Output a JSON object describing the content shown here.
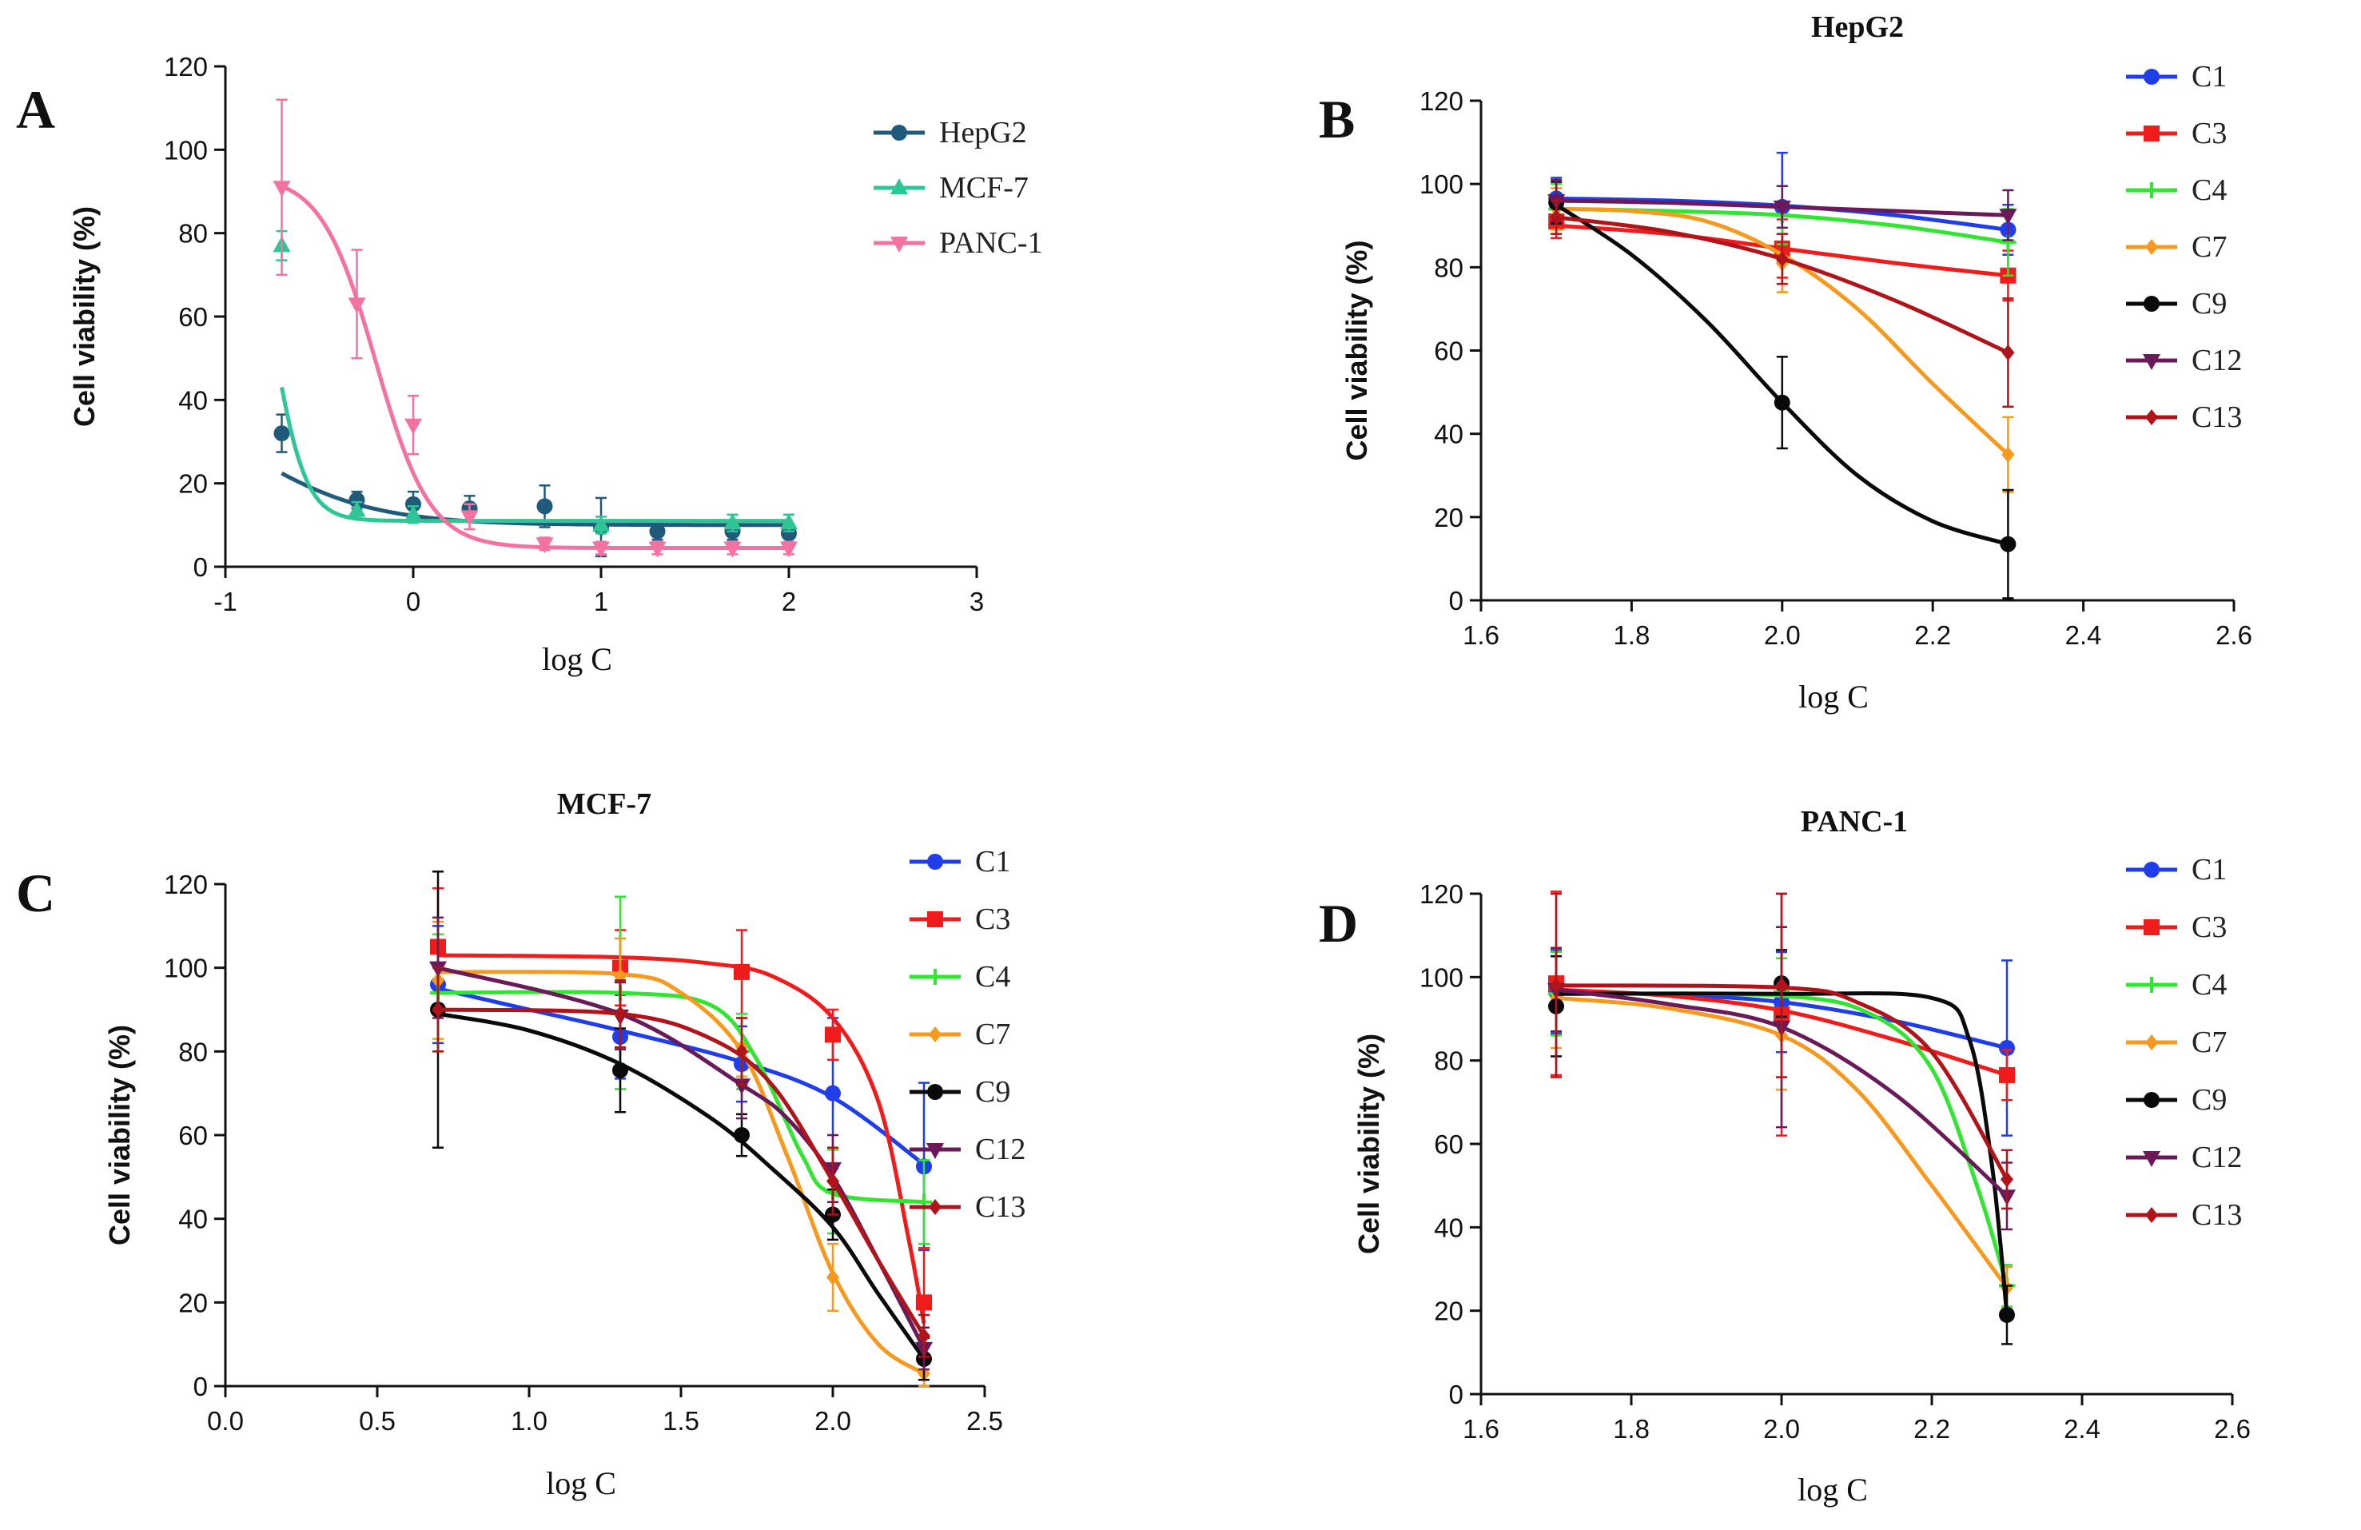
{
  "chart_data": [
    {
      "panel": "A",
      "type": "scatter",
      "title": "",
      "xlabel": "log C",
      "ylabel": "Cell viability (%)",
      "xlim": [
        -1,
        3
      ],
      "ylim": [
        0,
        120
      ],
      "xticks": [
        "-1",
        "0",
        "1",
        "2",
        "3"
      ],
      "yticks": [
        "0",
        "20",
        "40",
        "60",
        "80",
        "100",
        "120"
      ],
      "series": [
        {
          "name": "HepG2",
          "color": "#1f5a7a",
          "marker": "circle",
          "x": [
            -0.7,
            -0.3,
            0,
            0.3,
            0.7,
            1,
            1.3,
            1.7,
            2
          ],
          "y": [
            32,
            16,
            15,
            14,
            14.5,
            9.5,
            8.5,
            8.5,
            8
          ],
          "err": [
            4.5,
            2,
            3,
            3,
            5,
            7,
            2,
            2,
            2
          ],
          "fit": {
            "bottom": 10,
            "top": 45,
            "logec50": -0.9,
            "hill": -1.3
          }
        },
        {
          "name": "MCF-7",
          "color": "#2ec694",
          "marker": "triangle-up",
          "x": [
            -0.7,
            -0.3,
            0,
            1,
            1.7,
            2
          ],
          "y": [
            77,
            13.5,
            12.5,
            10,
            10.5,
            10.5
          ],
          "err": [
            3.5,
            2,
            2,
            2,
            2,
            2
          ],
          "fit": {
            "bottom": 11,
            "top": 100,
            "logec50": -0.75,
            "hill": -5
          }
        },
        {
          "name": "PANC-1",
          "color": "#f472a2",
          "marker": "triangle-down",
          "x": [
            -0.7,
            -0.3,
            0,
            0.3,
            0.7,
            1,
            1.3,
            1.7,
            2
          ],
          "y": [
            91,
            63,
            34,
            12,
            5.5,
            4.5,
            4.5,
            4.5,
            4.5
          ],
          "err": [
            21,
            13,
            7,
            3,
            1.5,
            1.5,
            1.5,
            1.5,
            1.5
          ],
          "fit": {
            "bottom": 4.5,
            "top": 94,
            "logec50": -0.2,
            "hill": -3
          }
        }
      ]
    },
    {
      "panel": "B",
      "type": "line",
      "title": "HepG2",
      "xlabel": "log C",
      "ylabel": "Cell viability (%)",
      "xlim": [
        1.6,
        2.6
      ],
      "ylim": [
        0,
        120
      ],
      "xticks": [
        "1.6",
        "1.8",
        "2.0",
        "2.2",
        "2.4",
        "2.6"
      ],
      "yticks": [
        "0",
        "20",
        "40",
        "60",
        "80",
        "100",
        "120"
      ],
      "x": [
        1.7,
        2.0,
        2.3
      ],
      "series": [
        {
          "name": "C1",
          "color": "#1f3de8",
          "marker": "circle",
          "y": [
            96.5,
            94.5,
            89
          ],
          "err": [
            5,
            13,
            6
          ],
          "curve": [
            [
              1.7,
              96.5
            ],
            [
              1.85,
              96
            ],
            [
              2.0,
              94.8
            ],
            [
              2.15,
              92.5
            ],
            [
              2.3,
              89
            ]
          ]
        },
        {
          "name": "C3",
          "color": "#f01c1c",
          "marker": "square",
          "y": [
            91,
            84.5,
            78
          ],
          "err": [
            4,
            7,
            6
          ],
          "curve": [
            [
              1.7,
              90
            ],
            [
              1.85,
              88
            ],
            [
              2.0,
              84.5
            ],
            [
              2.15,
              81
            ],
            [
              2.3,
              78
            ]
          ]
        },
        {
          "name": "C4",
          "color": "#33e533",
          "marker": "plus",
          "y": [
            94,
            92.5,
            86
          ],
          "err": [
            6,
            7,
            8
          ],
          "curve": [
            [
              1.7,
              94
            ],
            [
              1.85,
              93.5
            ],
            [
              2.0,
              92.5
            ],
            [
              2.15,
              90
            ],
            [
              2.3,
              86
            ]
          ]
        },
        {
          "name": "C7",
          "color": "#f59a1e",
          "marker": "diamond",
          "y": [
            94,
            81,
            35
          ],
          "err": [
            5,
            7,
            9
          ],
          "curve": [
            [
              1.7,
              94
            ],
            [
              1.8,
              93.5
            ],
            [
              1.9,
              91
            ],
            [
              2.0,
              83
            ],
            [
              2.1,
              70
            ],
            [
              2.2,
              52
            ],
            [
              2.3,
              35
            ]
          ]
        },
        {
          "name": "C9",
          "color": "#0a0a0a",
          "marker": "circle",
          "y": [
            95.5,
            47.5,
            13.5
          ],
          "err": [
            5,
            11,
            13
          ],
          "curve": [
            [
              1.7,
              95
            ],
            [
              1.8,
              83
            ],
            [
              1.9,
              67
            ],
            [
              2.0,
              47.5
            ],
            [
              2.1,
              30
            ],
            [
              2.2,
              19
            ],
            [
              2.3,
              13.5
            ]
          ]
        },
        {
          "name": "C12",
          "color": "#6a1a58",
          "marker": "triangle-down",
          "y": [
            96,
            94.5,
            92.5
          ],
          "err": [
            5,
            5,
            6
          ],
          "curve": [
            [
              1.7,
              96
            ],
            [
              1.85,
              95.5
            ],
            [
              2.0,
              94.5
            ],
            [
              2.15,
              93.5
            ],
            [
              2.3,
              92.5
            ]
          ]
        },
        {
          "name": "C13",
          "color": "#b0141a",
          "marker": "diamond",
          "y": [
            92,
            82,
            59.5
          ],
          "err": [
            4,
            6,
            13
          ],
          "curve": [
            [
              1.7,
              92
            ],
            [
              1.85,
              88.5
            ],
            [
              2.0,
              82
            ],
            [
              2.15,
              72
            ],
            [
              2.3,
              59.5
            ]
          ]
        }
      ]
    },
    {
      "panel": "C",
      "type": "line",
      "title": "MCF-7",
      "xlabel": "log C",
      "ylabel": "Cell viability (%)",
      "xlim": [
        0,
        2.5
      ],
      "ylim": [
        0,
        120
      ],
      "xticks": [
        "0.0",
        "0.5",
        "1.0",
        "1.5",
        "2.0",
        "2.5"
      ],
      "yticks": [
        "0",
        "20",
        "40",
        "60",
        "80",
        "100",
        "120"
      ],
      "x": [
        0.7,
        1.3,
        1.7,
        2.0,
        2.3
      ],
      "series": [
        {
          "name": "C1",
          "color": "#1f3de8",
          "marker": "circle",
          "y": [
            96,
            83.5,
            77,
            70,
            52.5
          ],
          "err": [
            14,
            10,
            9,
            18,
            20
          ],
          "curve": [
            [
              0.7,
              95
            ],
            [
              1.0,
              90
            ],
            [
              1.3,
              85
            ],
            [
              1.7,
              77.5
            ],
            [
              2.0,
              69
            ],
            [
              2.3,
              53
            ]
          ]
        },
        {
          "name": "C3",
          "color": "#f01c1c",
          "marker": "square",
          "y": [
            105,
            100,
            99,
            84,
            20
          ],
          "err": [
            14,
            9,
            10,
            6,
            13
          ],
          "curve": [
            [
              0.7,
              103
            ],
            [
              1.3,
              102.5
            ],
            [
              1.6,
              101
            ],
            [
              1.8,
              98
            ],
            [
              2.0,
              88
            ],
            [
              2.15,
              68
            ],
            [
              2.25,
              35
            ],
            [
              2.3,
              15
            ]
          ]
        },
        {
          "name": "C4",
          "color": "#33e533",
          "marker": "plus",
          "y": [
            94,
            94,
            80,
            46.5,
            44
          ],
          "err": [
            14,
            23,
            9,
            10,
            10
          ],
          "curve": [
            [
              0.7,
              94
            ],
            [
              1.3,
              94
            ],
            [
              1.6,
              91
            ],
            [
              1.75,
              78
            ],
            [
              1.9,
              55
            ],
            [
              2.0,
              46
            ],
            [
              2.3,
              44
            ]
          ]
        },
        {
          "name": "C7",
          "color": "#f59a1e",
          "marker": "diamond",
          "y": [
            97,
            98,
            81,
            26,
            3
          ],
          "err": [
            14,
            9,
            7,
            8,
            3
          ],
          "curve": [
            [
              0.7,
              99
            ],
            [
              1.3,
              98.5
            ],
            [
              1.5,
              94
            ],
            [
              1.7,
              80
            ],
            [
              1.85,
              55
            ],
            [
              2.0,
              27
            ],
            [
              2.15,
              10
            ],
            [
              2.3,
              3
            ]
          ]
        },
        {
          "name": "C9",
          "color": "#0a0a0a",
          "marker": "circle",
          "y": [
            90,
            75.5,
            60,
            41,
            6.5
          ],
          "err": [
            33,
            10,
            5,
            6,
            5
          ],
          "curve": [
            [
              0.7,
              89
            ],
            [
              1.0,
              85
            ],
            [
              1.3,
              77
            ],
            [
              1.6,
              64
            ],
            [
              1.8,
              52
            ],
            [
              2.0,
              38
            ],
            [
              2.15,
              22
            ],
            [
              2.3,
              6.5
            ]
          ]
        },
        {
          "name": "C12",
          "color": "#6a1a58",
          "marker": "triangle-down",
          "y": [
            100,
            88.5,
            72,
            52,
            9
          ],
          "err": [
            12,
            8,
            8,
            8,
            5
          ],
          "curve": [
            [
              0.7,
              100
            ],
            [
              1.3,
              89
            ],
            [
              1.7,
              72
            ],
            [
              1.85,
              64
            ],
            [
              2.0,
              50
            ],
            [
              2.15,
              30
            ],
            [
              2.3,
              9
            ]
          ]
        },
        {
          "name": "C13",
          "color": "#b0141a",
          "marker": "diamond",
          "y": [
            90,
            89,
            80,
            49,
            12
          ],
          "err": [
            10,
            8,
            8,
            8,
            5
          ],
          "curve": [
            [
              0.7,
              90
            ],
            [
              1.3,
              89
            ],
            [
              1.6,
              83
            ],
            [
              1.8,
              72
            ],
            [
              2.0,
              49
            ],
            [
              2.15,
              30
            ],
            [
              2.3,
              12
            ]
          ]
        }
      ]
    },
    {
      "panel": "D",
      "type": "line",
      "title": "PANC-1",
      "xlabel": "log C",
      "ylabel": "Cell viability (%)",
      "xlim": [
        1.6,
        2.6
      ],
      "ylim": [
        0,
        120
      ],
      "xticks": [
        "1.6",
        "1.8",
        "2.0",
        "2.2",
        "2.4",
        "2.6"
      ],
      "yticks": [
        "0",
        "20",
        "40",
        "60",
        "80",
        "100",
        "120"
      ],
      "x": [
        1.7,
        2.0,
        2.3
      ],
      "series": [
        {
          "name": "C1",
          "color": "#1f3de8",
          "marker": "circle",
          "y": [
            96.5,
            94,
            83
          ],
          "err": [
            10,
            12,
            21
          ],
          "curve": [
            [
              1.7,
              96.5
            ],
            [
              1.85,
              95.8
            ],
            [
              2.0,
              94
            ],
            [
              2.15,
              89.5
            ],
            [
              2.3,
              83
            ]
          ]
        },
        {
          "name": "C3",
          "color": "#f01c1c",
          "marker": "square",
          "y": [
            98.5,
            91,
            76.5
          ],
          "err": [
            22,
            29,
            6
          ],
          "curve": [
            [
              1.7,
              97
            ],
            [
              1.85,
              95.5
            ],
            [
              2.0,
              92
            ],
            [
              2.15,
              85
            ],
            [
              2.3,
              76.5
            ]
          ]
        },
        {
          "name": "C4",
          "color": "#33e533",
          "marker": "plus",
          "y": [
            96,
            96.5,
            26
          ],
          "err": [
            10,
            8,
            5
          ],
          "curve": [
            [
              1.7,
              96
            ],
            [
              2.0,
              95.5
            ],
            [
              2.12,
              91
            ],
            [
              2.2,
              78
            ],
            [
              2.26,
              50
            ],
            [
              2.3,
              26
            ]
          ]
        },
        {
          "name": "C7",
          "color": "#f59a1e",
          "marker": "diamond",
          "y": [
            95,
            86,
            25.5
          ],
          "err": [
            12,
            13,
            5
          ],
          "curve": [
            [
              1.7,
              95
            ],
            [
              1.85,
              92.5
            ],
            [
              2.0,
              86
            ],
            [
              2.1,
              73
            ],
            [
              2.2,
              50
            ],
            [
              2.3,
              25.5
            ]
          ]
        },
        {
          "name": "C9",
          "color": "#0a0a0a",
          "marker": "circle",
          "y": [
            93,
            98.5,
            19
          ],
          "err": [
            12,
            8,
            7
          ],
          "curve": [
            [
              1.7,
              96
            ],
            [
              2.0,
              96
            ],
            [
              2.2,
              95
            ],
            [
              2.25,
              85
            ],
            [
              2.28,
              55
            ],
            [
              2.3,
              19
            ]
          ]
        },
        {
          "name": "C12",
          "color": "#6a1a58",
          "marker": "triangle-down",
          "y": [
            97,
            88,
            47.5
          ],
          "err": [
            10,
            24,
            8
          ],
          "curve": [
            [
              1.7,
              97
            ],
            [
              1.85,
              93.5
            ],
            [
              2.0,
              88
            ],
            [
              2.15,
              72
            ],
            [
              2.3,
              47.5
            ]
          ]
        },
        {
          "name": "C13",
          "color": "#b0141a",
          "marker": "diamond",
          "y": [
            98,
            98,
            51.5
          ],
          "err": [
            22,
            22,
            7
          ],
          "curve": [
            [
              1.7,
              98
            ],
            [
              2.0,
              97.5
            ],
            [
              2.1,
              94
            ],
            [
              2.2,
              82
            ],
            [
              2.3,
              51.5
            ]
          ]
        }
      ]
    }
  ],
  "panel_letters": [
    "A",
    "B",
    "C",
    "D"
  ]
}
